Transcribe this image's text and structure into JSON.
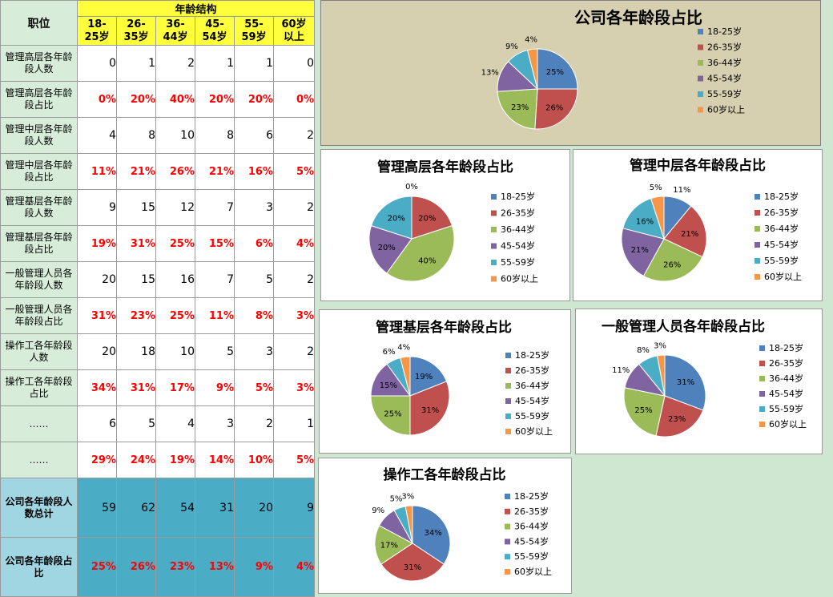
{
  "table": {
    "header_position": "职位",
    "header_group": "年龄结构",
    "age_columns": [
      "18-\n25岁",
      "26-\n35岁",
      "36-\n44岁",
      "45-\n54岁",
      "55-\n59岁",
      "60岁\n以上"
    ],
    "rows": [
      {
        "label": "管理高层各年龄段人数",
        "values": [
          "0",
          "1",
          "2",
          "1",
          "1",
          "0"
        ],
        "kind": "count"
      },
      {
        "label": "管理高层各年龄段占比",
        "values": [
          "0%",
          "20%",
          "40%",
          "20%",
          "20%",
          "0%"
        ],
        "kind": "pct"
      },
      {
        "label": "管理中层各年龄段人数",
        "values": [
          "4",
          "8",
          "10",
          "8",
          "6",
          "2"
        ],
        "kind": "count"
      },
      {
        "label": "管理中层各年龄段占比",
        "values": [
          "11%",
          "21%",
          "26%",
          "21%",
          "16%",
          "5%"
        ],
        "kind": "pct"
      },
      {
        "label": "管理基层各年龄段人数",
        "values": [
          "9",
          "15",
          "12",
          "7",
          "3",
          "2"
        ],
        "kind": "count"
      },
      {
        "label": "管理基层各年龄段占比",
        "values": [
          "19%",
          "31%",
          "25%",
          "15%",
          "6%",
          "4%"
        ],
        "kind": "pct"
      },
      {
        "label": "一般管理人员各年龄段人数",
        "values": [
          "20",
          "15",
          "16",
          "7",
          "5",
          "2"
        ],
        "kind": "count"
      },
      {
        "label": "一般管理人员各年龄段占比",
        "values": [
          "31%",
          "23%",
          "25%",
          "11%",
          "8%",
          "3%"
        ],
        "kind": "pct"
      },
      {
        "label": "操作工各年龄段人数",
        "values": [
          "20",
          "18",
          "10",
          "5",
          "3",
          "2"
        ],
        "kind": "count"
      },
      {
        "label": "操作工各年龄段占比",
        "values": [
          "34%",
          "31%",
          "17%",
          "9%",
          "5%",
          "3%"
        ],
        "kind": "pct"
      },
      {
        "label": "……",
        "values": [
          "6",
          "5",
          "4",
          "3",
          "2",
          "1"
        ],
        "kind": "count"
      },
      {
        "label": "……",
        "values": [
          "29%",
          "24%",
          "19%",
          "14%",
          "10%",
          "5%"
        ],
        "kind": "pct"
      }
    ],
    "totals": [
      {
        "label": "公司各年龄段人数总计",
        "values": [
          "59",
          "62",
          "54",
          "31",
          "20",
          "9"
        ],
        "kind": "count"
      },
      {
        "label": "公司各年龄段占比",
        "values": [
          "25%",
          "26%",
          "23%",
          "13%",
          "9%",
          "4%"
        ],
        "kind": "pct"
      }
    ]
  },
  "colors": {
    "slices": [
      "#4f81bd",
      "#c0504d",
      "#9bbb59",
      "#8064a2",
      "#4bacc6",
      "#f79646"
    ],
    "sidebar_bg": "#d7ecd9",
    "header_bg": "#ffff3c",
    "total_bg": "#4bacc6",
    "pct_text": "#ff0000"
  },
  "chart_data": [
    {
      "type": "pie",
      "title": "公司各年龄段占比",
      "categories": [
        "18-25岁",
        "26-35岁",
        "36-44岁",
        "45-54岁",
        "55-59岁",
        "60岁以上"
      ],
      "values": [
        25,
        26,
        23,
        13,
        9,
        4
      ],
      "labels": [
        "25%",
        "26%",
        "23%",
        "13%",
        "9%",
        "4%"
      ],
      "legend": "right"
    },
    {
      "type": "pie",
      "title": "管理高层各年龄段占比",
      "categories": [
        "18-25岁",
        "26-35岁",
        "36-44岁",
        "45-54岁",
        "55-59岁",
        "60岁以上"
      ],
      "values": [
        0,
        20,
        40,
        20,
        20,
        0
      ],
      "labels": [
        "0%",
        "20%",
        "40%",
        "20%",
        "20%",
        ""
      ],
      "legend": "right"
    },
    {
      "type": "pie",
      "title": "管理中层各年龄段占比",
      "categories": [
        "18-25岁",
        "26-35岁",
        "36-44岁",
        "45-54岁",
        "55-59岁",
        "60岁以上"
      ],
      "values": [
        11,
        21,
        26,
        21,
        16,
        5
      ],
      "labels": [
        "11%",
        "21%",
        "26%",
        "21%",
        "16%",
        "5%"
      ],
      "legend": "right"
    },
    {
      "type": "pie",
      "title": "管理基层各年龄段占比",
      "categories": [
        "18-25岁",
        "26-35岁",
        "36-44岁",
        "45-54岁",
        "55-59岁",
        "60岁以上"
      ],
      "values": [
        19,
        31,
        25,
        15,
        6,
        4
      ],
      "labels": [
        "19%",
        "31%",
        "25%",
        "15%",
        "6%",
        "4%"
      ],
      "legend": "right"
    },
    {
      "type": "pie",
      "title": "一般管理人员各年龄段占比",
      "categories": [
        "18-25岁",
        "26-35岁",
        "36-44岁",
        "45-54岁",
        "55-59岁",
        "60岁以上"
      ],
      "values": [
        31,
        23,
        25,
        11,
        8,
        3
      ],
      "labels": [
        "31%",
        "23%",
        "25%",
        "11%",
        "8%",
        "3%"
      ],
      "legend": "right"
    },
    {
      "type": "pie",
      "title": "操作工各年龄段占比",
      "categories": [
        "18-25岁",
        "26-35岁",
        "36-44岁",
        "45-54岁",
        "55-59岁",
        "60岁以上"
      ],
      "values": [
        34,
        31,
        17,
        9,
        5,
        3
      ],
      "labels": [
        "34%",
        "31%",
        "17%",
        "9%",
        "5%",
        "3%"
      ],
      "legend": "right"
    }
  ]
}
